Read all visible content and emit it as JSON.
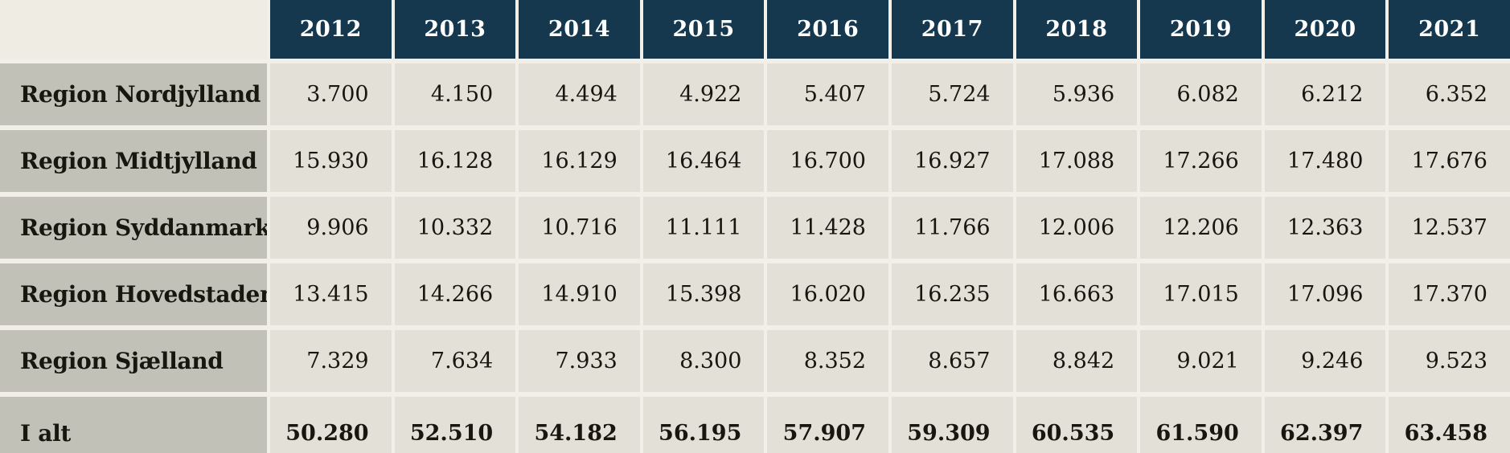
{
  "table": {
    "corner_label": "",
    "year_headers": [
      "2012",
      "2013",
      "2014",
      "2015",
      "2016",
      "2017",
      "2018",
      "2019",
      "2020",
      "2021"
    ],
    "rows": [
      {
        "label": "Region Nordjylland",
        "is_total": false,
        "values": [
          "3.700",
          "4.150",
          "4.494",
          "4.922",
          "5.407",
          "5.724",
          "5.936",
          "6.082",
          "6.212",
          "6.352"
        ]
      },
      {
        "label": "Region Midtjylland",
        "is_total": false,
        "values": [
          "15.930",
          "16.128",
          "16.129",
          "16.464",
          "16.700",
          "16.927",
          "17.088",
          "17.266",
          "17.480",
          "17.676"
        ]
      },
      {
        "label": "Region Syddanmark",
        "is_total": false,
        "values": [
          "9.906",
          "10.332",
          "10.716",
          "11.111",
          "11.428",
          "11.766",
          "12.006",
          "12.206",
          "12.363",
          "12.537"
        ]
      },
      {
        "label": "Region Hovedstaden",
        "is_total": false,
        "values": [
          "13.415",
          "14.266",
          "14.910",
          "15.398",
          "16.020",
          "16.235",
          "16.663",
          "17.015",
          "17.096",
          "17.370"
        ]
      },
      {
        "label": "Region Sjælland",
        "is_total": false,
        "values": [
          "7.329",
          "7.634",
          "7.933",
          "8.300",
          "8.352",
          "8.657",
          "8.842",
          "9.021",
          "9.246",
          "9.523"
        ]
      },
      {
        "label": "I alt",
        "is_total": true,
        "values": [
          "50.280",
          "52.510",
          "54.182",
          "56.195",
          "57.907",
          "59.309",
          "60.535",
          "61.590",
          "62.397",
          "63.458"
        ]
      }
    ]
  },
  "chart_data": {
    "type": "table",
    "title": "",
    "categories": [
      "2012",
      "2013",
      "2014",
      "2015",
      "2016",
      "2017",
      "2018",
      "2019",
      "2020",
      "2021"
    ],
    "series": [
      {
        "name": "Region Nordjylland",
        "values": [
          3700,
          4150,
          4494,
          4922,
          5407,
          5724,
          5936,
          6082,
          6212,
          6352
        ]
      },
      {
        "name": "Region Midtjylland",
        "values": [
          15930,
          16128,
          16129,
          16464,
          16700,
          16927,
          17088,
          17266,
          17480,
          17676
        ]
      },
      {
        "name": "Region Syddanmark",
        "values": [
          9906,
          10332,
          10716,
          11111,
          11428,
          11766,
          12006,
          12206,
          12363,
          12537
        ]
      },
      {
        "name": "Region Hovedstaden",
        "values": [
          13415,
          14266,
          14910,
          15398,
          16020,
          16235,
          16663,
          17015,
          17096,
          17370
        ]
      },
      {
        "name": "Region Sjælland",
        "values": [
          7329,
          7634,
          7933,
          8300,
          8352,
          8657,
          8842,
          9021,
          9246,
          9523
        ]
      },
      {
        "name": "I alt",
        "values": [
          50280,
          52510,
          54182,
          56195,
          57907,
          59309,
          60535,
          61590,
          62397,
          63458
        ]
      }
    ],
    "number_format": "da-DK thousands separator (.)",
    "layout": {
      "header_position": "top",
      "row_labels_position": "left",
      "grid": "white gaps between cells"
    }
  },
  "colors": {
    "header_bg": "#15384F",
    "header_text": "#FFFFFF",
    "row_label_bg": "#C1C1B8",
    "value_cell_bg": "#E3E0D7",
    "corner_cell_bg": "#EFECE3",
    "gap_bg": "#F2EFE8",
    "text": "#17170F"
  }
}
